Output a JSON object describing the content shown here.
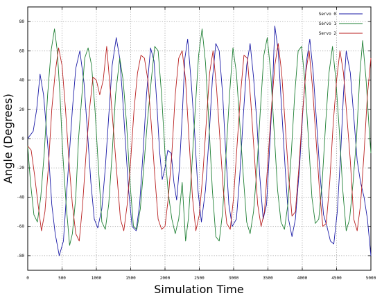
{
  "chart_data": {
    "type": "line",
    "title": "",
    "xlabel": "Simulation Time",
    "ylabel": "Angle (Degrees)",
    "xlim": [
      0,
      5000
    ],
    "ylim": [
      -90,
      90
    ],
    "x_ticks": [
      0,
      500,
      1000,
      1500,
      2000,
      2500,
      3000,
      3500,
      4000,
      4500,
      5000
    ],
    "y_ticks": [
      -80,
      -60,
      -40,
      -20,
      0,
      20,
      40,
      60,
      80
    ],
    "grid": true,
    "legend_position": "top-right",
    "series": [
      {
        "name": "Servo 0",
        "color": "#1a1aa6",
        "points": [
          [
            0,
            0
          ],
          [
            30,
            2
          ],
          [
            80,
            5
          ],
          [
            130,
            20
          ],
          [
            180,
            44
          ],
          [
            230,
            30
          ],
          [
            270,
            8
          ],
          [
            310,
            -15
          ],
          [
            350,
            -45
          ],
          [
            400,
            -65
          ],
          [
            460,
            -80
          ],
          [
            520,
            -70
          ],
          [
            560,
            -42
          ],
          [
            610,
            -8
          ],
          [
            650,
            20
          ],
          [
            700,
            48
          ],
          [
            760,
            60
          ],
          [
            820,
            38
          ],
          [
            870,
            5
          ],
          [
            920,
            -30
          ],
          [
            970,
            -55
          ],
          [
            1020,
            -61
          ],
          [
            1080,
            -48
          ],
          [
            1130,
            -20
          ],
          [
            1180,
            15
          ],
          [
            1230,
            50
          ],
          [
            1290,
            69
          ],
          [
            1340,
            55
          ],
          [
            1380,
            30
          ],
          [
            1420,
            0
          ],
          [
            1470,
            -35
          ],
          [
            1520,
            -60
          ],
          [
            1580,
            -63
          ],
          [
            1630,
            -45
          ],
          [
            1680,
            -10
          ],
          [
            1730,
            30
          ],
          [
            1790,
            62
          ],
          [
            1840,
            53
          ],
          [
            1880,
            25
          ],
          [
            1920,
            -8
          ],
          [
            1960,
            -28
          ],
          [
            2000,
            -20
          ],
          [
            2040,
            -8
          ],
          [
            2090,
            -10
          ],
          [
            2130,
            -30
          ],
          [
            2170,
            -42
          ],
          [
            2210,
            -20
          ],
          [
            2250,
            15
          ],
          [
            2290,
            55
          ],
          [
            2330,
            68
          ],
          [
            2380,
            40
          ],
          [
            2430,
            5
          ],
          [
            2480,
            -35
          ],
          [
            2530,
            -57
          ],
          [
            2590,
            -35
          ],
          [
            2640,
            0
          ],
          [
            2690,
            40
          ],
          [
            2740,
            65
          ],
          [
            2790,
            60
          ],
          [
            2840,
            30
          ],
          [
            2880,
            -5
          ],
          [
            2930,
            -45
          ],
          [
            2980,
            -60
          ],
          [
            3040,
            -55
          ],
          [
            3090,
            -25
          ],
          [
            3140,
            15
          ],
          [
            3190,
            50
          ],
          [
            3240,
            65
          ],
          [
            3290,
            42
          ],
          [
            3340,
            10
          ],
          [
            3380,
            -25
          ],
          [
            3430,
            -55
          ],
          [
            3480,
            -45
          ],
          [
            3520,
            -10
          ],
          [
            3560,
            25
          ],
          [
            3600,
            77
          ],
          [
            3650,
            60
          ],
          [
            3700,
            20
          ],
          [
            3750,
            -20
          ],
          [
            3800,
            -55
          ],
          [
            3850,
            -67
          ],
          [
            3900,
            -55
          ],
          [
            3960,
            -20
          ],
          [
            4010,
            20
          ],
          [
            4060,
            52
          ],
          [
            4110,
            68
          ],
          [
            4160,
            45
          ],
          [
            4210,
            10
          ],
          [
            4260,
            -25
          ],
          [
            4310,
            -52
          ],
          [
            4360,
            -60
          ],
          [
            4410,
            -70
          ],
          [
            4460,
            -72
          ],
          [
            4510,
            -50
          ],
          [
            4560,
            -10
          ],
          [
            4600,
            30
          ],
          [
            4640,
            60
          ],
          [
            4700,
            45
          ],
          [
            4750,
            15
          ],
          [
            4800,
            -15
          ],
          [
            4850,
            -30
          ],
          [
            4900,
            -40
          ],
          [
            4950,
            -55
          ],
          [
            5000,
            -80
          ]
        ]
      },
      {
        "name": "Servo 1",
        "color": "#1e7f33",
        "points": [
          [
            0,
            -5
          ],
          [
            40,
            -30
          ],
          [
            90,
            -52
          ],
          [
            140,
            -57
          ],
          [
            190,
            -40
          ],
          [
            240,
            -10
          ],
          [
            290,
            30
          ],
          [
            340,
            60
          ],
          [
            390,
            75
          ],
          [
            430,
            60
          ],
          [
            470,
            30
          ],
          [
            510,
            -10
          ],
          [
            560,
            -45
          ],
          [
            610,
            -73
          ],
          [
            650,
            -65
          ],
          [
            700,
            -40
          ],
          [
            740,
            0
          ],
          [
            790,
            30
          ],
          [
            830,
            55
          ],
          [
            880,
            62
          ],
          [
            930,
            50
          ],
          [
            980,
            20
          ],
          [
            1030,
            -20
          ],
          [
            1080,
            -57
          ],
          [
            1130,
            -62
          ],
          [
            1180,
            -45
          ],
          [
            1230,
            -10
          ],
          [
            1280,
            30
          ],
          [
            1340,
            55
          ],
          [
            1390,
            40
          ],
          [
            1440,
            10
          ],
          [
            1490,
            -30
          ],
          [
            1540,
            -60
          ],
          [
            1590,
            -62
          ],
          [
            1640,
            -48
          ],
          [
            1690,
            -20
          ],
          [
            1740,
            10
          ],
          [
            1800,
            40
          ],
          [
            1850,
            63
          ],
          [
            1900,
            60
          ],
          [
            1950,
            30
          ],
          [
            2000,
            -10
          ],
          [
            2050,
            -38
          ],
          [
            2100,
            -55
          ],
          [
            2150,
            -65
          ],
          [
            2200,
            -55
          ],
          [
            2250,
            -30
          ],
          [
            2300,
            -70
          ],
          [
            2340,
            -55
          ],
          [
            2390,
            -20
          ],
          [
            2440,
            20
          ],
          [
            2490,
            57
          ],
          [
            2540,
            75
          ],
          [
            2590,
            52
          ],
          [
            2640,
            10
          ],
          [
            2690,
            -35
          ],
          [
            2740,
            -67
          ],
          [
            2790,
            -70
          ],
          [
            2840,
            -50
          ],
          [
            2890,
            -10
          ],
          [
            2940,
            30
          ],
          [
            2990,
            62
          ],
          [
            3040,
            45
          ],
          [
            3090,
            10
          ],
          [
            3140,
            -25
          ],
          [
            3190,
            -57
          ],
          [
            3240,
            -65
          ],
          [
            3290,
            -50
          ],
          [
            3340,
            -20
          ],
          [
            3390,
            20
          ],
          [
            3440,
            57
          ],
          [
            3490,
            69
          ],
          [
            3540,
            45
          ],
          [
            3590,
            5
          ],
          [
            3640,
            -35
          ],
          [
            3690,
            -57
          ],
          [
            3740,
            -62
          ],
          [
            3790,
            -45
          ],
          [
            3840,
            -10
          ],
          [
            3890,
            30
          ],
          [
            3940,
            60
          ],
          [
            3990,
            63
          ],
          [
            4040,
            38
          ],
          [
            4090,
            0
          ],
          [
            4140,
            -40
          ],
          [
            4190,
            -58
          ],
          [
            4240,
            -55
          ],
          [
            4290,
            -30
          ],
          [
            4340,
            10
          ],
          [
            4390,
            45
          ],
          [
            4440,
            63
          ],
          [
            4490,
            40
          ],
          [
            4540,
            5
          ],
          [
            4590,
            -35
          ],
          [
            4640,
            -63
          ],
          [
            4690,
            -55
          ],
          [
            4740,
            -30
          ],
          [
            4790,
            0
          ],
          [
            4840,
            45
          ],
          [
            4880,
            67
          ],
          [
            4930,
            40
          ],
          [
            4970,
            10
          ],
          [
            5000,
            -10
          ]
        ]
      },
      {
        "name": "Servo 2",
        "color": "#b81e1e",
        "points": [
          [
            0,
            -5
          ],
          [
            50,
            -8
          ],
          [
            100,
            -25
          ],
          [
            150,
            -45
          ],
          [
            200,
            -63
          ],
          [
            250,
            -50
          ],
          [
            300,
            -20
          ],
          [
            350,
            20
          ],
          [
            400,
            45
          ],
          [
            450,
            62
          ],
          [
            500,
            50
          ],
          [
            550,
            20
          ],
          [
            600,
            -15
          ],
          [
            650,
            -45
          ],
          [
            700,
            -65
          ],
          [
            750,
            -70
          ],
          [
            800,
            -45
          ],
          [
            850,
            -10
          ],
          [
            900,
            20
          ],
          [
            950,
            42
          ],
          [
            1000,
            40
          ],
          [
            1050,
            30
          ],
          [
            1100,
            40
          ],
          [
            1150,
            63
          ],
          [
            1200,
            35
          ],
          [
            1250,
            5
          ],
          [
            1300,
            -25
          ],
          [
            1350,
            -55
          ],
          [
            1400,
            -63
          ],
          [
            1450,
            -45
          ],
          [
            1500,
            -15
          ],
          [
            1550,
            20
          ],
          [
            1600,
            45
          ],
          [
            1650,
            57
          ],
          [
            1700,
            55
          ],
          [
            1750,
            40
          ],
          [
            1800,
            10
          ],
          [
            1850,
            -25
          ],
          [
            1900,
            -55
          ],
          [
            1950,
            -62
          ],
          [
            2000,
            -60
          ],
          [
            2050,
            -40
          ],
          [
            2100,
            -10
          ],
          [
            2150,
            30
          ],
          [
            2200,
            55
          ],
          [
            2250,
            60
          ],
          [
            2300,
            40
          ],
          [
            2350,
            0
          ],
          [
            2400,
            -40
          ],
          [
            2450,
            -63
          ],
          [
            2500,
            -52
          ],
          [
            2550,
            -25
          ],
          [
            2600,
            10
          ],
          [
            2650,
            45
          ],
          [
            2700,
            60
          ],
          [
            2750,
            35
          ],
          [
            2800,
            0
          ],
          [
            2850,
            -35
          ],
          [
            2900,
            -58
          ],
          [
            2950,
            -62
          ],
          [
            3000,
            -40
          ],
          [
            3050,
            -5
          ],
          [
            3100,
            30
          ],
          [
            3150,
            57
          ],
          [
            3200,
            55
          ],
          [
            3250,
            25
          ],
          [
            3300,
            -10
          ],
          [
            3350,
            -45
          ],
          [
            3400,
            -60
          ],
          [
            3450,
            -50
          ],
          [
            3500,
            -15
          ],
          [
            3550,
            20
          ],
          [
            3600,
            50
          ],
          [
            3650,
            65
          ],
          [
            3700,
            45
          ],
          [
            3750,
            10
          ],
          [
            3800,
            -25
          ],
          [
            3850,
            -53
          ],
          [
            3900,
            -50
          ],
          [
            3950,
            -20
          ],
          [
            4000,
            15
          ],
          [
            4050,
            45
          ],
          [
            4100,
            60
          ],
          [
            4150,
            35
          ],
          [
            4200,
            0
          ],
          [
            4250,
            -35
          ],
          [
            4300,
            -60
          ],
          [
            4350,
            -58
          ],
          [
            4400,
            -30
          ],
          [
            4450,
            10
          ],
          [
            4500,
            40
          ],
          [
            4550,
            60
          ],
          [
            4600,
            45
          ],
          [
            4650,
            15
          ],
          [
            4700,
            -15
          ],
          [
            4750,
            -55
          ],
          [
            4800,
            -63
          ],
          [
            4850,
            -45
          ],
          [
            4900,
            -10
          ],
          [
            4950,
            30
          ],
          [
            5000,
            55
          ]
        ]
      }
    ]
  }
}
